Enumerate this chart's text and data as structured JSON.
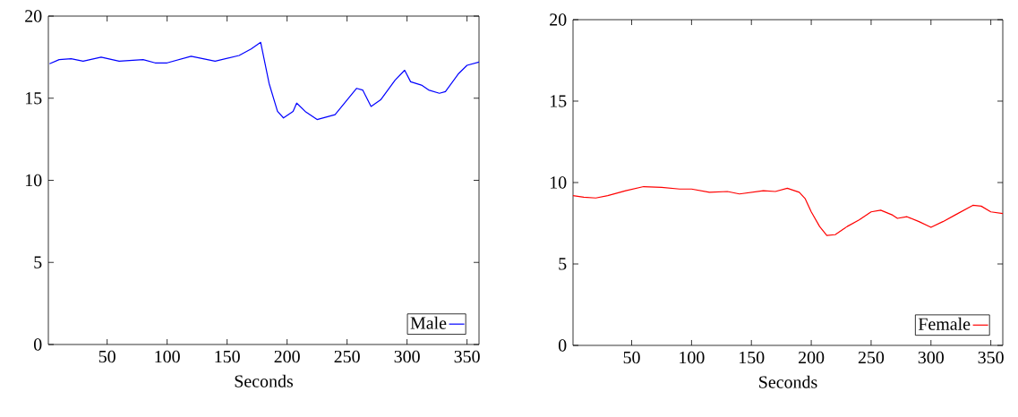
{
  "chart_data": [
    {
      "type": "line",
      "xlabel": "Seconds",
      "xlim": [
        1,
        360
      ],
      "ylim": [
        0,
        20
      ],
      "xticks": [
        50,
        100,
        150,
        200,
        250,
        300,
        350
      ],
      "yticks": [
        0,
        5,
        10,
        15,
        20
      ],
      "legend": "bottom right",
      "marker": "none",
      "line_style": "solid",
      "series": [
        {
          "name": "Male",
          "color": "#0000ff",
          "x": [
            2,
            10,
            20,
            30,
            45,
            60,
            80,
            90,
            100,
            120,
            140,
            160,
            170,
            178,
            185,
            192,
            197,
            205,
            208,
            215,
            225,
            240,
            258,
            263,
            270,
            278,
            290,
            298,
            303,
            312,
            318,
            327,
            332,
            343,
            350,
            360
          ],
          "values": [
            17.1,
            17.35,
            17.4,
            17.25,
            17.5,
            17.25,
            17.35,
            17.15,
            17.15,
            17.55,
            17.25,
            17.6,
            18.0,
            18.4,
            15.9,
            14.2,
            13.8,
            14.2,
            14.7,
            14.2,
            13.7,
            14.0,
            15.6,
            15.5,
            14.5,
            14.9,
            16.1,
            16.7,
            16.0,
            15.8,
            15.5,
            15.3,
            15.4,
            16.5,
            17.0,
            17.2
          ]
        }
      ]
    },
    {
      "type": "line",
      "xlabel": "Seconds",
      "xlim": [
        1,
        360
      ],
      "ylim": [
        0,
        20
      ],
      "xticks": [
        50,
        100,
        150,
        200,
        250,
        300,
        350
      ],
      "yticks": [
        0,
        5,
        10,
        15,
        20
      ],
      "legend": "bottom right",
      "marker": "none",
      "line_style": "solid",
      "series": [
        {
          "name": "Female",
          "color": "#ff0000",
          "x": [
            1,
            10,
            20,
            30,
            45,
            60,
            75,
            90,
            100,
            115,
            130,
            140,
            160,
            170,
            180,
            190,
            195,
            200,
            207,
            213,
            220,
            230,
            240,
            250,
            258,
            268,
            272,
            280,
            290,
            300,
            310,
            320,
            335,
            342,
            350,
            360
          ],
          "values": [
            9.2,
            9.1,
            9.05,
            9.2,
            9.5,
            9.75,
            9.7,
            9.6,
            9.6,
            9.4,
            9.45,
            9.3,
            9.5,
            9.45,
            9.65,
            9.4,
            9.0,
            8.2,
            7.3,
            6.75,
            6.8,
            7.3,
            7.7,
            8.2,
            8.3,
            8.0,
            7.8,
            7.9,
            7.6,
            7.25,
            7.6,
            8.0,
            8.6,
            8.55,
            8.2,
            8.1
          ]
        }
      ]
    }
  ]
}
